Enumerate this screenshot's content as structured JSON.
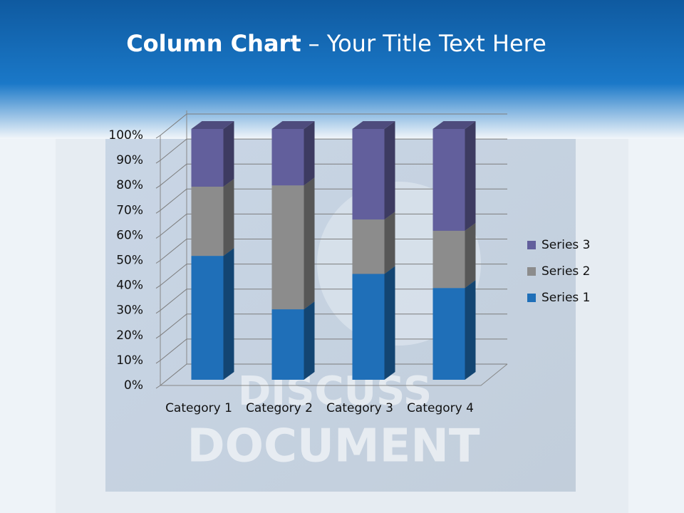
{
  "chart_data": {
    "type": "bar",
    "stacked": true,
    "title": [
      "Column Chart",
      "– Your Title Text Here"
    ],
    "categories": [
      "Category 1",
      "Category 2",
      "Category 3",
      "Category 4"
    ],
    "series": [
      {
        "name": "Series 1",
        "color": "#1f6fb8",
        "values": [
          49.4,
          28.1,
          42.2,
          36.6
        ]
      },
      {
        "name": "Series 2",
        "color": "#8c8c8c",
        "values": [
          27.6,
          49.4,
          21.7,
          22.8
        ]
      },
      {
        "name": "Series 3",
        "color": "#625f9c",
        "values": [
          23.0,
          22.5,
          36.1,
          40.6
        ]
      }
    ],
    "ylim": [
      0,
      100
    ],
    "yticks": [
      {
        "value": 0,
        "label": "0%"
      },
      {
        "value": 10,
        "label": "10%"
      },
      {
        "value": 20,
        "label": "20%"
      },
      {
        "value": 30,
        "label": "30%"
      },
      {
        "value": 40,
        "label": "40%"
      },
      {
        "value": 50,
        "label": "50%"
      },
      {
        "value": 60,
        "label": "60%"
      },
      {
        "value": 70,
        "label": "70%"
      },
      {
        "value": 80,
        "label": "80%"
      },
      {
        "value": 90,
        "label": "90%"
      },
      {
        "value": 100,
        "label": "100%"
      }
    ],
    "grid": true,
    "legend": "right"
  },
  "background": {
    "lines": [
      "DISCUSS",
      "DOCUMENT"
    ]
  }
}
